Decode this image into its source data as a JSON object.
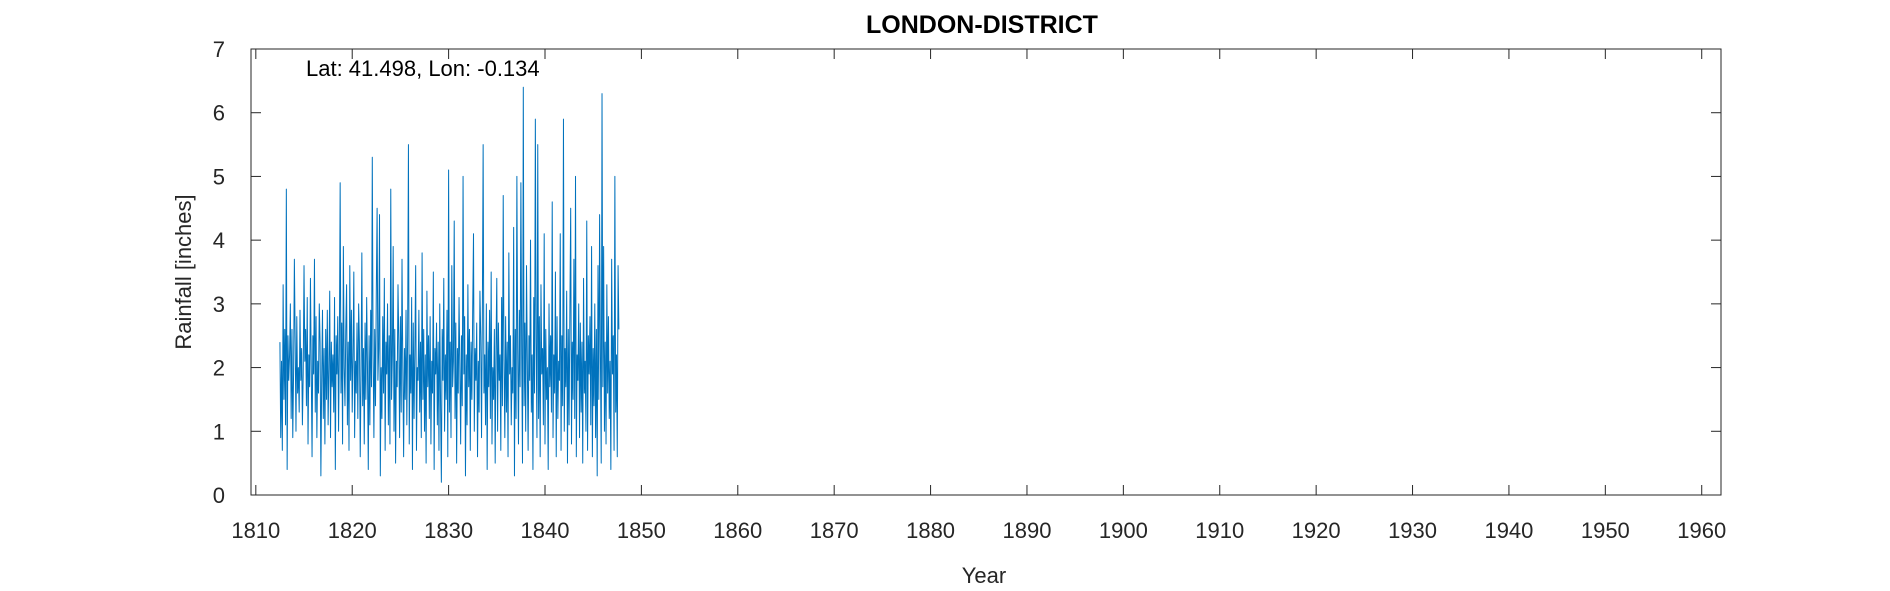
{
  "chart_data": {
    "type": "line",
    "title": "LONDON-DISTRICT",
    "annotation": "Lat: 41.498, Lon: -0.134",
    "xlabel": "Year",
    "ylabel": "Rainfall [inches]",
    "xlim": [
      1809.5,
      1962
    ],
    "ylim": [
      0,
      7
    ],
    "xticks": [
      1810,
      1820,
      1830,
      1840,
      1850,
      1860,
      1870,
      1880,
      1890,
      1900,
      1910,
      1920,
      1930,
      1940,
      1950,
      1960
    ],
    "yticks": [
      0,
      1,
      2,
      3,
      4,
      5,
      6,
      7
    ],
    "grid": false,
    "line_color": "#0072BD",
    "series": [
      {
        "x_start": 1812.5,
        "x_step": 0.08333,
        "values": [
          2.4,
          0.9,
          2.1,
          0.7,
          3.3,
          1.5,
          2.6,
          1.1,
          4.8,
          0.4,
          2.5,
          1.8,
          2.2,
          3.0,
          1.2,
          2.6,
          0.9,
          1.9,
          3.7,
          2.4,
          1.0,
          2.8,
          1.6,
          2.0,
          1.3,
          2.9,
          1.8,
          2.3,
          1.1,
          1.9,
          3.6,
          2.1,
          2.6,
          1.4,
          3.1,
          0.8,
          2.2,
          1.7,
          3.4,
          2.0,
          0.6,
          2.5,
          1.9,
          3.7,
          1.3,
          2.8,
          0.9,
          2.1,
          1.6,
          3.0,
          2.4,
          0.3,
          1.8,
          2.9,
          1.2,
          2.3,
          0.8,
          2.6,
          1.5,
          2.9,
          1.1,
          2.0,
          3.2,
          0.9,
          2.4,
          1.7,
          2.2,
          1.3,
          3.1,
          0.4,
          2.5,
          1.9,
          2.8,
          1.0,
          2.3,
          4.9,
          1.6,
          2.7,
          0.8,
          3.9,
          2.0,
          1.4,
          2.6,
          3.3,
          1.1,
          2.4,
          0.7,
          3.6,
          1.8,
          2.9,
          1.3,
          2.2,
          3.5,
          0.9,
          2.1,
          1.6,
          2.7,
          1.2,
          3.0,
          2.4,
          0.6,
          1.9,
          3.8,
          1.4,
          2.3,
          0.8,
          2.7,
          1.5,
          3.1,
          2.0,
          0.4,
          2.5,
          1.1,
          2.9,
          1.7,
          5.3,
          2.2,
          0.9,
          2.6,
          1.4,
          3.2,
          4.5,
          1.8,
          2.3,
          4.4,
          0.3,
          2.0,
          1.2,
          2.8,
          1.6,
          3.4,
          0.7,
          2.4,
          1.9,
          3.0,
          1.1,
          2.5,
          0.8,
          4.8,
          1.5,
          2.2,
          3.9,
          1.0,
          2.6,
          0.5,
          2.1,
          1.7,
          3.3,
          2.4,
          0.9,
          2.8,
          1.3,
          3.7,
          2.0,
          0.6,
          2.3,
          1.5,
          2.9,
          1.1,
          2.5,
          5.5,
          0.8,
          2.2,
          1.6,
          3.1,
          0.4,
          2.7,
          1.2,
          2.3,
          3.6,
          0.7,
          2.0,
          1.8,
          2.9,
          1.3,
          2.4,
          0.9,
          3.8,
          1.5,
          2.6,
          1.0,
          2.2,
          0.5,
          3.2,
          1.7,
          2.5,
          1.2,
          2.8,
          0.8,
          2.1,
          1.6,
          3.5,
          0.4,
          2.3,
          1.9,
          2.7,
          1.1,
          2.4,
          0.7,
          3.0,
          1.4,
          0.2,
          2.6,
          1.8,
          3.4,
          1.0,
          2.2,
          1.5,
          2.9,
          0.6,
          5.1,
          1.3,
          2.4,
          0.9,
          3.6,
          1.7,
          2.1,
          4.3,
          1.2,
          2.7,
          0.5,
          2.3,
          1.6,
          3.1,
          2.0,
          0.8,
          2.5,
          1.4,
          5.0,
          1.9,
          2.8,
          0.3,
          2.2,
          1.1,
          3.3,
          1.7,
          2.6,
          0.7,
          2.4,
          1.5,
          2.9,
          4.1,
          1.0,
          2.3,
          1.8,
          2.7,
          0.6,
          2.1,
          1.3,
          3.2,
          2.5,
          0.9,
          2.8,
          5.5,
          1.6,
          2.2,
          1.1,
          3.0,
          0.4,
          2.4,
          1.7,
          2.9,
          1.2,
          3.5,
          0.8,
          2.0,
          1.5,
          2.6,
          0.5,
          2.3,
          3.4,
          1.0,
          2.7,
          1.8,
          2.2,
          0.7,
          3.1,
          1.4,
          4.7,
          2.1,
          0.9,
          2.8,
          1.3,
          2.4,
          0.6,
          3.8,
          1.9,
          2.5,
          1.1,
          2.0,
          1.6,
          4.2,
          0.3,
          2.6,
          1.2,
          5.0,
          2.3,
          0.8,
          2.9,
          1.7,
          4.9,
          2.2,
          0.5,
          6.4,
          1.4,
          2.7,
          1.0,
          3.6,
          2.1,
          0.7,
          2.5,
          1.8,
          4.0,
          1.3,
          2.2,
          0.4,
          3.1,
          1.6,
          5.9,
          2.4,
          0.9,
          5.5,
          1.2,
          2.8,
          0.6,
          3.3,
          1.9,
          2.3,
          1.1,
          4.1,
          0.8,
          2.6,
          1.5,
          2.0,
          0.4,
          3.0,
          1.7,
          2.5,
          1.3,
          4.6,
          0.9,
          2.2,
          1.6,
          3.5,
          0.6,
          2.8,
          1.2,
          2.1,
          1.8,
          4.1,
          0.7,
          2.5,
          1.4,
          5.9,
          1.0,
          2.3,
          1.7,
          3.2,
          0.5,
          2.6,
          1.1,
          2.9,
          4.5,
          0.8,
          2.4,
          1.5,
          3.7,
          1.2,
          5.0,
          0.6,
          2.2,
          1.8,
          3.0,
          0.9,
          2.7,
          1.3,
          2.4,
          0.5,
          3.4,
          1.6,
          2.1,
          1.0,
          4.3,
          0.7,
          2.5,
          1.9,
          2.8,
          1.1,
          3.9,
          0.6,
          2.3,
          1.4,
          3.0,
          0.9,
          2.6,
          0.3,
          3.6,
          1.5,
          4.4,
          2.2,
          0.5,
          6.3,
          1.7,
          3.9,
          1.0,
          2.4,
          0.8,
          3.3,
          1.6,
          2.8,
          1.2,
          2.1,
          0.4,
          3.7,
          1.9,
          2.5,
          0.7,
          5.0,
          1.3,
          2.2,
          0.6,
          3.6,
          2.6
        ]
      }
    ]
  }
}
